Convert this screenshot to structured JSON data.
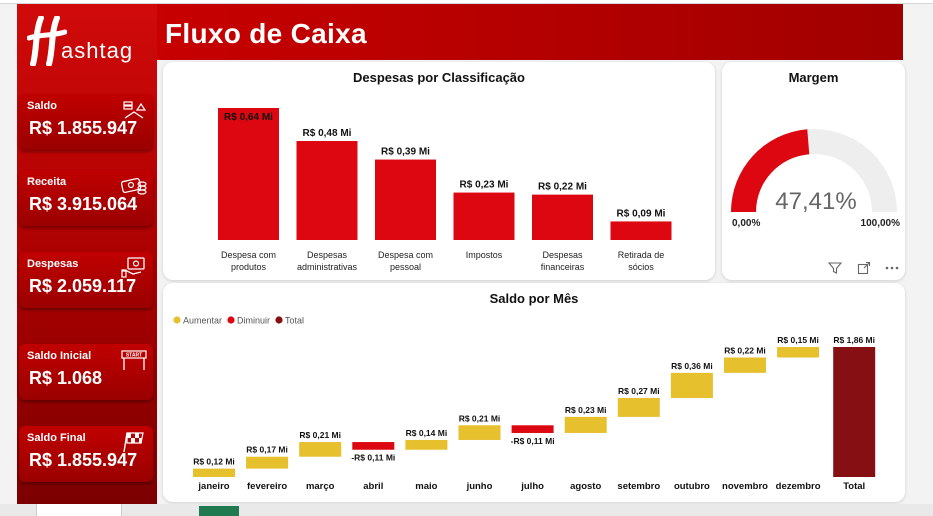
{
  "header": {
    "title": "Fluxo de Caixa"
  },
  "logo": {
    "text": "ashtag"
  },
  "kpis": [
    {
      "title": "Saldo",
      "value": "R$ 1.855.947",
      "icon": "scale-icon"
    },
    {
      "title": "Receita",
      "value": "R$ 3.915.064",
      "icon": "cash-icon"
    },
    {
      "title": "Despesas",
      "value": "R$ 2.059.117",
      "icon": "money-hand-icon"
    },
    {
      "title": "Saldo Inicial",
      "value": "R$ 1.068",
      "icon": "start-flag-icon"
    },
    {
      "title": "Saldo Final",
      "value": "R$ 1.855.947",
      "icon": "checkered-flag-icon"
    }
  ],
  "colors": {
    "brand_red": "#c00000",
    "bar_red": "#dd0711",
    "increase": "#e6c02d",
    "decrease": "#dd0711",
    "total": "#860f14"
  },
  "chart_data": [
    {
      "type": "bar",
      "title": "Despesas por Classificação",
      "categories": [
        "Despesa com produtos",
        "Despesas administrativas",
        "Despesa com pessoal",
        "Impostos",
        "Despesas financeiras",
        "Retirada de sócios"
      ],
      "values": [
        0.64,
        0.48,
        0.39,
        0.23,
        0.22,
        0.09
      ],
      "data_labels": [
        "R$ 0,64 Mi",
        "R$ 0,48 Mi",
        "R$ 0,39 Mi",
        "R$ 0,23 Mi",
        "R$ 0,22 Mi",
        "R$ 0,09 Mi"
      ],
      "ylim": [
        0,
        0.64
      ]
    },
    {
      "type": "gauge",
      "title": "Margem",
      "value_label": "47,41%",
      "value": 0.4741,
      "min_label": "0,00%",
      "max_label": "100,00%"
    },
    {
      "type": "waterfall",
      "title": "Saldo por Mês",
      "legend": [
        "Aumentar",
        "Diminuir",
        "Total"
      ],
      "categories": [
        "janeiro",
        "fevereiro",
        "março",
        "abril",
        "maio",
        "junho",
        "julho",
        "agosto",
        "setembro",
        "outubro",
        "novembro",
        "dezembro",
        "Total"
      ],
      "values": [
        0.12,
        0.17,
        0.21,
        -0.11,
        0.14,
        0.21,
        -0.11,
        0.23,
        0.27,
        0.36,
        0.22,
        0.15,
        1.86
      ],
      "data_labels": [
        "R$ 0,12 Mi",
        "R$ 0,17 Mi",
        "R$ 0,21 Mi",
        "-R$ 0,11 Mi",
        "R$ 0,14 Mi",
        "R$ 0,21 Mi",
        "-R$ 0,11 Mi",
        "R$ 0,23 Mi",
        "R$ 0,27 Mi",
        "R$ 0,36 Mi",
        "R$ 0,22 Mi",
        "R$ 0,15 Mi",
        "R$ 1,86 Mi"
      ]
    }
  ]
}
